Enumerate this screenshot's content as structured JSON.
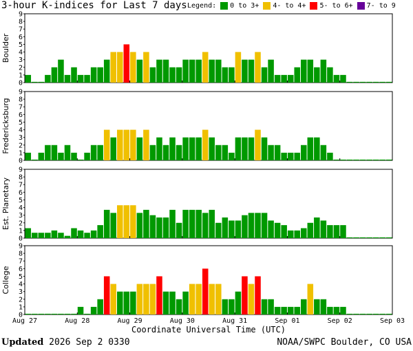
{
  "title": "3-hour K-indices for Last 7 days",
  "legend": {
    "label": "Legend:",
    "items": [
      {
        "label": "0 to 3+",
        "color": "#009900"
      },
      {
        "label": "4- to 4+",
        "color": "#f0c000"
      },
      {
        "label": "5- to 6+",
        "color": "#ff0000"
      },
      {
        "label": "7- to 9",
        "color": "#660099"
      }
    ]
  },
  "footer": {
    "updated_label": "Updated",
    "updated_value": "2026 Sep  2 0330",
    "credit": "NOAA/SWPC Boulder, CO USA"
  },
  "chart_data": {
    "type": "bar",
    "xlabel": "Coordinate Universal Time (UTC)",
    "x_ticks": [
      "Aug 27",
      "Aug 28",
      "Aug 29",
      "Aug 30",
      "Aug 31",
      "Sep 01",
      "Sep 02",
      "Sep 03"
    ],
    "y_ticks": [
      "0",
      "1",
      "2",
      "3",
      "4",
      "5",
      "6",
      "7",
      "8",
      "9"
    ],
    "ylim": [
      0,
      9
    ],
    "color_thresholds": [
      {
        "min": 0,
        "max": 3.9,
        "color": "#009900"
      },
      {
        "min": 4,
        "max": 4.9,
        "color": "#f0c000"
      },
      {
        "min": 5,
        "max": 6.9,
        "color": "#ff0000"
      },
      {
        "min": 7,
        "max": 9,
        "color": "#660099"
      }
    ],
    "panels": [
      {
        "name": "Boulder",
        "values": [
          1,
          0,
          0,
          1,
          2,
          3,
          1,
          2,
          1,
          1,
          2,
          2,
          3,
          4,
          4,
          5,
          4,
          3,
          4,
          2,
          3,
          3,
          2,
          2,
          3,
          3,
          3,
          4,
          3,
          3,
          2,
          2,
          4,
          3,
          3,
          4,
          2,
          3,
          1,
          1,
          1,
          2,
          3,
          3,
          2,
          3,
          2,
          1,
          1,
          0,
          0,
          0,
          0,
          0,
          0,
          0
        ]
      },
      {
        "name": "Fredericksburg",
        "values": [
          1,
          0,
          1,
          2,
          2,
          1,
          2,
          1,
          0,
          1,
          2,
          2,
          4,
          3,
          4,
          4,
          4,
          3,
          4,
          2,
          3,
          2,
          3,
          2,
          3,
          3,
          3,
          4,
          3,
          2,
          2,
          1,
          3,
          3,
          3,
          4,
          3,
          2,
          2,
          1,
          1,
          1,
          2,
          3,
          3,
          2,
          1,
          0,
          0,
          0,
          0,
          0,
          0,
          0,
          0,
          0
        ]
      },
      {
        "name": "Est. Planetary",
        "values": [
          1.3,
          0.7,
          0.7,
          0.7,
          1,
          0.7,
          0.3,
          1.3,
          1,
          0.7,
          1,
          1.7,
          3.7,
          3.3,
          4.3,
          4.3,
          4.3,
          3.3,
          3.7,
          3,
          2.7,
          2.7,
          3.7,
          2,
          3.7,
          3.7,
          3.7,
          3.3,
          3.7,
          2,
          2.7,
          2.3,
          2.3,
          3,
          3.3,
          3.3,
          3.3,
          2.3,
          2,
          1.7,
          1,
          1,
          1.3,
          2,
          2.7,
          2.3,
          1.7,
          1.7,
          1.7,
          0,
          0,
          0,
          0,
          0,
          0,
          0
        ]
      },
      {
        "name": "College",
        "values": [
          0,
          0,
          0,
          0,
          0,
          0,
          0,
          0,
          1,
          0,
          1,
          2,
          5,
          4,
          3,
          3,
          3,
          4,
          4,
          4,
          5,
          3,
          3,
          2,
          3,
          4,
          4,
          6,
          4,
          4,
          2,
          2,
          3,
          5,
          4,
          5,
          2,
          2,
          1,
          1,
          1,
          1,
          2,
          4,
          2,
          2,
          1,
          1,
          1,
          0,
          0,
          0,
          0,
          0,
          0,
          0
        ]
      }
    ]
  }
}
